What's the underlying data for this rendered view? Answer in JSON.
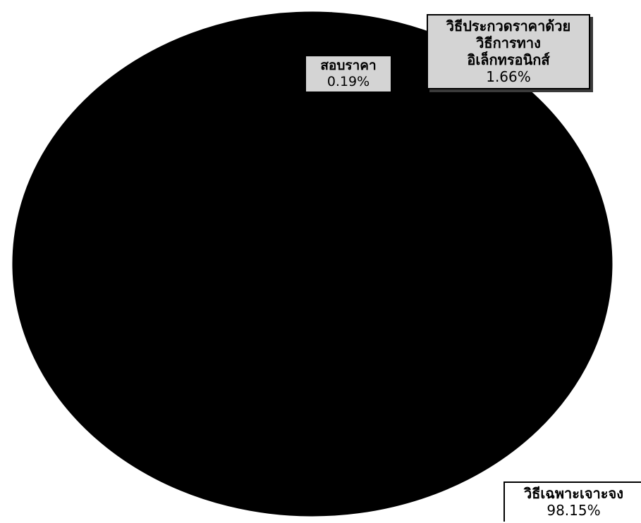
{
  "chart_data": {
    "type": "pie",
    "title": "",
    "categories": [
      "วิธีเฉพาะเจาะจง",
      "วิธีประกวดราคาด้วยวิธีการทางอิเล็กทรอนิกส์",
      "สอบราคา"
    ],
    "values": [
      98.15,
      1.66,
      0.19
    ],
    "value_unit": "%",
    "data_labels": [
      {
        "category": "วิธีเฉพาะเจาะจง",
        "value_text": "98.15%"
      },
      {
        "category_lines": [
          "วิธีประกวดราคาด้วย",
          "วิธีการทาง",
          "อิเล็กทรอนิกส์"
        ],
        "value_text": "1.66%"
      },
      {
        "category": "สอบราคา",
        "value_text": "0.19%"
      }
    ],
    "colors": [
      "#000000",
      "#000000",
      "#000000"
    ],
    "legend": "none"
  }
}
